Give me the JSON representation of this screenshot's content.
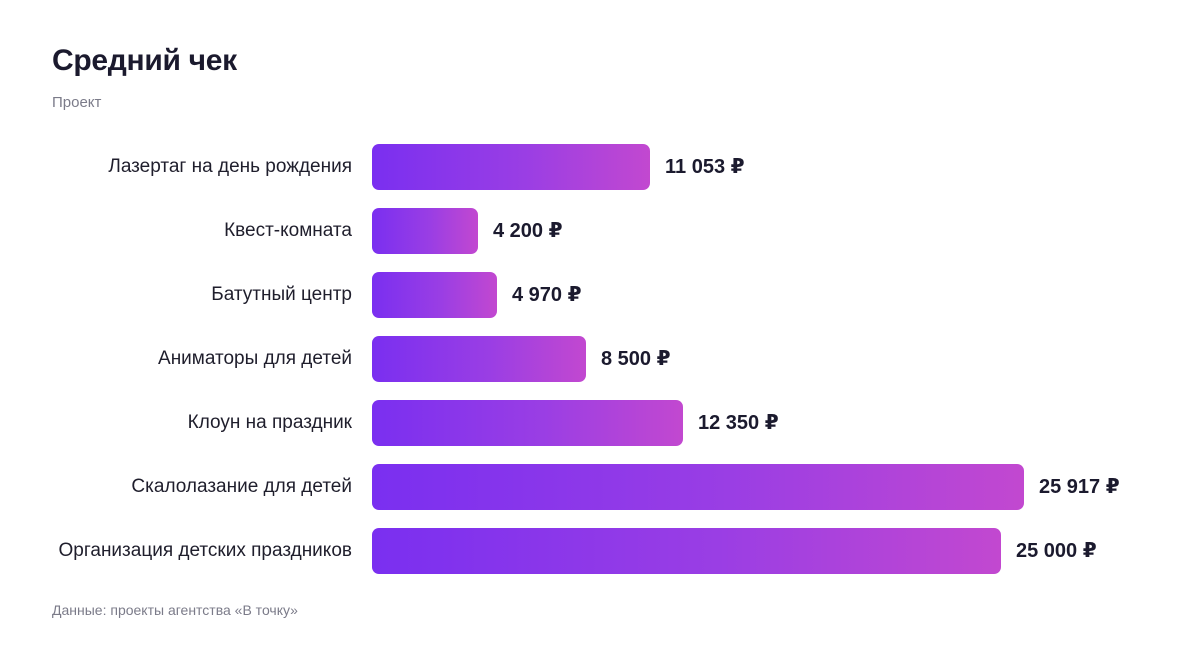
{
  "header": {
    "title": "Средний чек",
    "subtitle": "Проект"
  },
  "footer": {
    "source": "Данные: проекты агентства «В точку»"
  },
  "colors": {
    "bar_gradient_start": "#7a2ff0",
    "bar_gradient_end": "#c248d0",
    "text": "#1b1a2e",
    "muted": "#7b7b89"
  },
  "chart_data": {
    "type": "bar",
    "orientation": "horizontal",
    "title": "Средний чек",
    "subtitle": "Проект",
    "currency_suffix": "₽",
    "categories": [
      "Лазертаг на день рождения",
      "Квест-комната",
      "Батутный центр",
      "Аниматоры для детей",
      "Клоун на праздник",
      "Скалолазание для детей",
      "Организация детских праздников"
    ],
    "values": [
      11053,
      4200,
      4970,
      8500,
      12350,
      25917,
      25000
    ],
    "value_labels": [
      "11 053 ₽",
      "4 200 ₽",
      "4 970 ₽",
      "8 500 ₽",
      "12 350 ₽",
      "25 917 ₽",
      "25 000 ₽"
    ],
    "xlim": [
      0,
      25917
    ],
    "grid": false,
    "legend": "none"
  }
}
